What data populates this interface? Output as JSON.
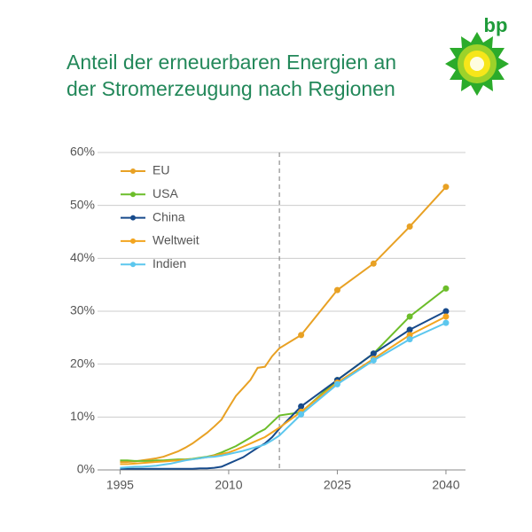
{
  "logo_text": "bp",
  "chart_data": {
    "type": "line",
    "title": "Anteil der erneuerbaren Energien an der Stromerzeugung nach Regionen",
    "x": [
      1995,
      1996,
      1997,
      1998,
      1999,
      2000,
      2001,
      2002,
      2003,
      2004,
      2005,
      2006,
      2007,
      2008,
      2009,
      2010,
      2011,
      2012,
      2013,
      2014,
      2015,
      2016,
      2017,
      2020,
      2025,
      2030,
      2035,
      2040
    ],
    "series": [
      {
        "name": "EU",
        "color": "#e8a124",
        "values": [
          1.5,
          1.5,
          1.6,
          1.8,
          2.0,
          2.2,
          2.5,
          3.0,
          3.5,
          4.2,
          5.0,
          6.0,
          7.0,
          8.2,
          9.5,
          11.8,
          14.0,
          15.5,
          17.0,
          19.3,
          19.5,
          21.5,
          23.0,
          25.5,
          34.0,
          39.0,
          46.0,
          53.5
        ]
      },
      {
        "name": "USA",
        "color": "#6cbd2a",
        "values": [
          1.8,
          1.8,
          1.7,
          1.7,
          1.7,
          1.8,
          1.8,
          1.9,
          2.0,
          2.0,
          2.1,
          2.3,
          2.5,
          2.8,
          3.3,
          3.9,
          4.5,
          5.3,
          6.1,
          7.0,
          7.7,
          9.0,
          10.3,
          10.9,
          17.0,
          22.0,
          29.0,
          34.3
        ]
      },
      {
        "name": "China",
        "color": "#174a8b",
        "values": [
          0.2,
          0.2,
          0.2,
          0.2,
          0.2,
          0.2,
          0.2,
          0.2,
          0.2,
          0.2,
          0.2,
          0.3,
          0.3,
          0.4,
          0.6,
          1.2,
          1.8,
          2.4,
          3.3,
          4.2,
          5.0,
          6.2,
          7.8,
          12.0,
          17.0,
          22.0,
          26.5,
          30.0
        ]
      },
      {
        "name": "Weltweit",
        "color": "#f3a51f",
        "values": [
          1.1,
          1.1,
          1.2,
          1.3,
          1.4,
          1.5,
          1.6,
          1.7,
          1.8,
          1.9,
          2.0,
          2.2,
          2.4,
          2.7,
          3.0,
          3.3,
          3.8,
          4.4,
          5.0,
          5.6,
          6.2,
          7.1,
          8.0,
          11.0,
          16.5,
          21.0,
          25.5,
          29.0
        ]
      },
      {
        "name": "Indien",
        "color": "#5cc7ee",
        "values": [
          0.4,
          0.5,
          0.6,
          0.6,
          0.7,
          0.8,
          1.0,
          1.2,
          1.5,
          1.8,
          2.0,
          2.2,
          2.4,
          2.5,
          2.7,
          3.0,
          3.3,
          3.6,
          4.0,
          4.4,
          4.8,
          5.6,
          6.5,
          10.5,
          16.2,
          20.7,
          24.7,
          27.8
        ]
      }
    ],
    "xlim": [
      1992.5,
      2042.7
    ],
    "xticks": [
      1995,
      2010,
      2025,
      2040
    ],
    "ylim": [
      0,
      60
    ],
    "yticks": [
      {
        "value": 0,
        "label": "0%"
      },
      {
        "value": 10,
        "label": "10%"
      },
      {
        "value": 20,
        "label": "20%"
      },
      {
        "value": 30,
        "label": "30%"
      },
      {
        "value": 40,
        "label": "40%"
      },
      {
        "value": 50,
        "label": "50%"
      },
      {
        "value": 60,
        "label": "60%"
      }
    ],
    "grid": true,
    "vline_x": 2017,
    "markers_from": 2020,
    "legend": "upper-left"
  }
}
